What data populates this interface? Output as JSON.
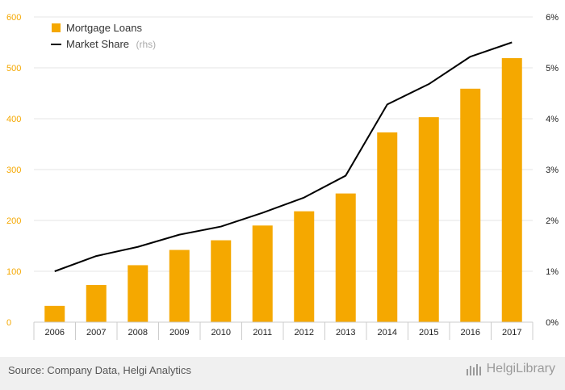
{
  "colors": {
    "bar": "#f5a800",
    "line": "#000000",
    "grid": "#e4e4e4",
    "axis": "#cccccc"
  },
  "chart_data": {
    "type": "bar",
    "categories": [
      "2006",
      "2007",
      "2008",
      "2009",
      "2010",
      "2011",
      "2012",
      "2013",
      "2014",
      "2015",
      "2016",
      "2017"
    ],
    "series": [
      {
        "name": "Mortgage Loans",
        "type": "bar",
        "axis": "left",
        "values": [
          32,
          73,
          112,
          142,
          161,
          190,
          218,
          253,
          373,
          403,
          459,
          519
        ]
      },
      {
        "name": "Market Share",
        "type": "line",
        "axis": "right",
        "unit": "%",
        "values": [
          1.0,
          1.3,
          1.48,
          1.72,
          1.88,
          2.15,
          2.45,
          2.88,
          4.28,
          4.68,
          5.22,
          5.5
        ]
      }
    ],
    "y_left": {
      "min": 0,
      "max": 600,
      "ticks": [
        "0",
        "100",
        "200",
        "300",
        "400",
        "500",
        "600"
      ]
    },
    "y_right": {
      "min": 0,
      "max": 6,
      "ticks": [
        "0%",
        "1%",
        "2%",
        "3%",
        "4%",
        "5%",
        "6%"
      ]
    },
    "legend": {
      "items": [
        {
          "label": "Mortgage Loans",
          "suffix": ""
        },
        {
          "label": "Market Share",
          "suffix": "(rhs)"
        }
      ],
      "placement": "top-left"
    },
    "grid": true
  },
  "footer": {
    "source": "Source: Company Data, Helgi Analytics",
    "brand": "HelgiLibrary"
  }
}
